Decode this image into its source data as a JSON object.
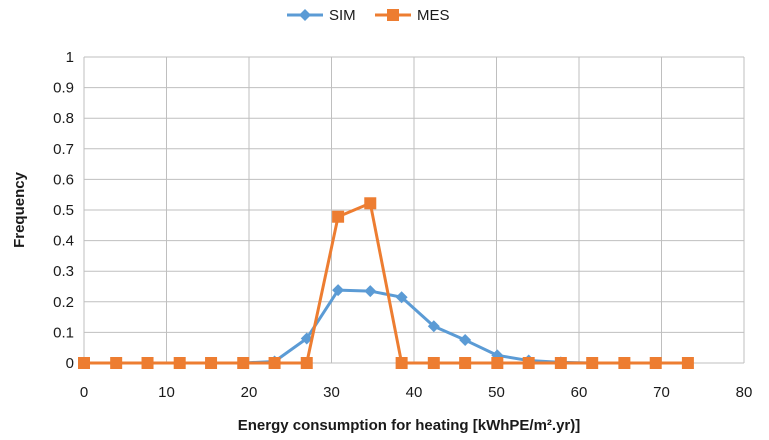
{
  "chart_data": {
    "type": "line",
    "title": "",
    "xlabel": "Energy consumption for heating [kWhPE/m².yr)]",
    "ylabel": "Frequency",
    "xlim": [
      0,
      80
    ],
    "ylim": [
      0,
      1
    ],
    "x_ticks": [
      "0",
      "10",
      "20",
      "30",
      "40",
      "50",
      "60",
      "70",
      "80"
    ],
    "y_ticks": [
      "0",
      "0.1",
      "0.2",
      "0.3",
      "0.4",
      "0.5",
      "0.6",
      "0.7",
      "0.8",
      "0.9",
      "1"
    ],
    "grid": true,
    "legend_position": "top",
    "series": [
      {
        "name": "SIM",
        "color": "#5b9bd5",
        "marker": "diamond",
        "x": [
          0,
          3.9,
          7.7,
          11.6,
          15.4,
          19.3,
          23.1,
          27,
          30.8,
          34.7,
          38.5,
          42.4,
          46.2,
          50.1,
          53.9,
          57.8,
          61.6,
          65.5,
          69.3,
          73.2
        ],
        "y": [
          0,
          0,
          0,
          0,
          0,
          0,
          0.005,
          0.08,
          0.238,
          0.235,
          0.215,
          0.12,
          0.075,
          0.025,
          0.008,
          0.002,
          0,
          0,
          0,
          0
        ]
      },
      {
        "name": "MES",
        "color": "#ed7d31",
        "marker": "square",
        "x": [
          0,
          3.9,
          7.7,
          11.6,
          15.4,
          19.3,
          23.1,
          27,
          30.8,
          34.7,
          38.5,
          42.4,
          46.2,
          50.1,
          53.9,
          57.8,
          61.6,
          65.5,
          69.3,
          73.2
        ],
        "y": [
          0,
          0,
          0,
          0,
          0,
          0,
          0,
          0,
          0.478,
          0.522,
          0,
          0,
          0,
          0,
          0,
          0,
          0,
          0,
          0,
          0
        ]
      }
    ]
  }
}
